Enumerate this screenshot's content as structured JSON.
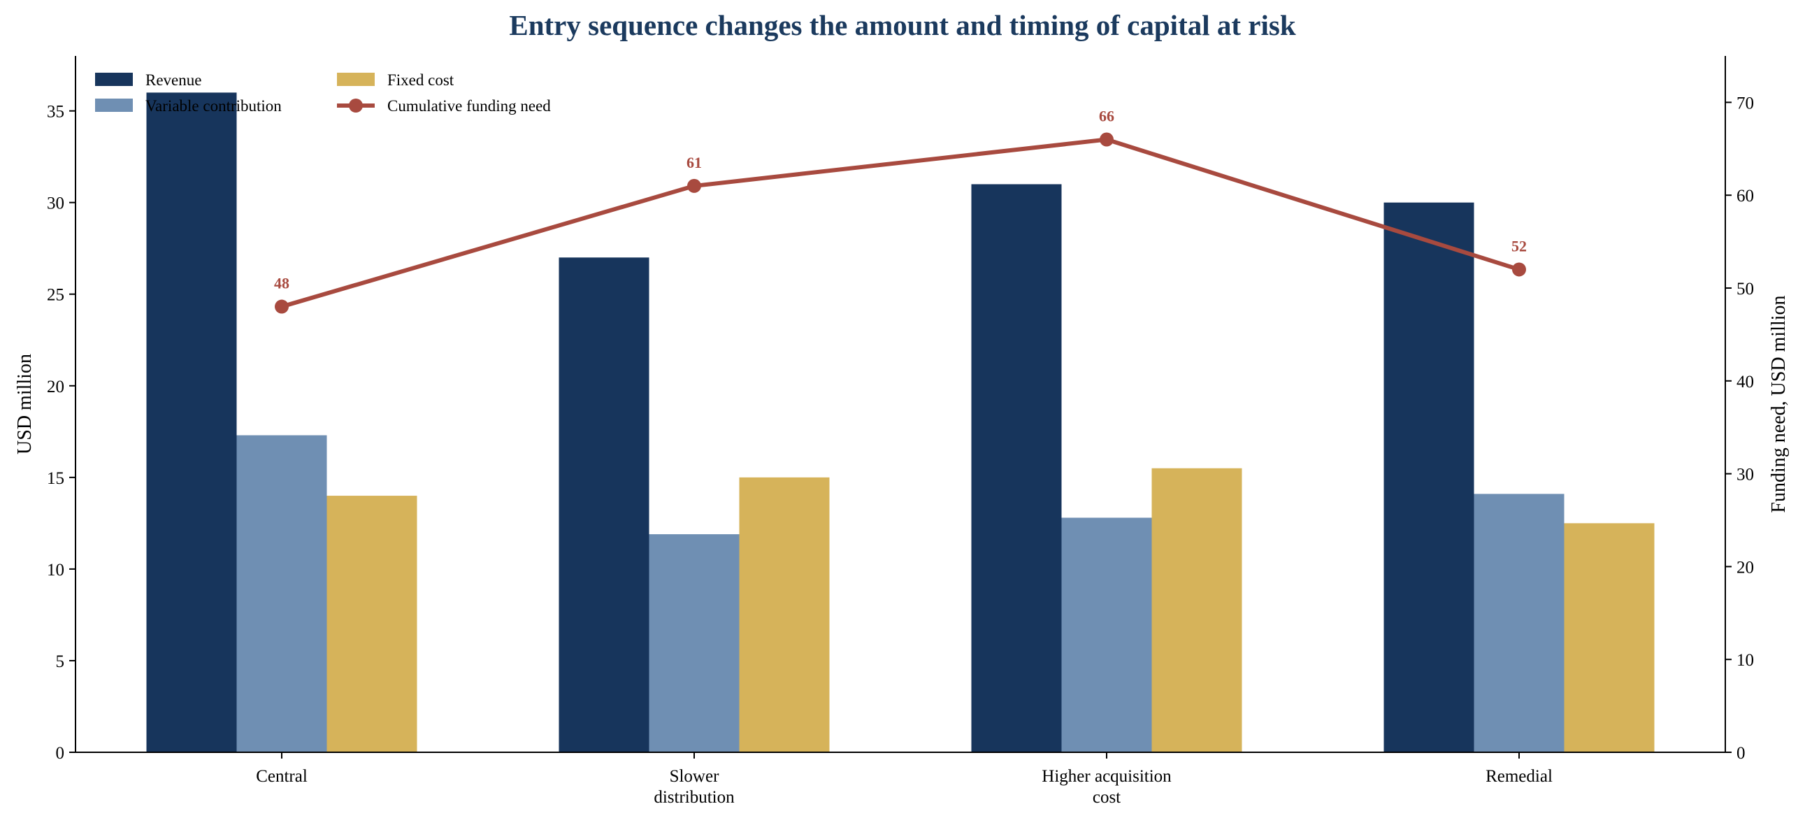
{
  "chart_data": {
    "type": "bar",
    "title": "Entry sequence changes the amount and timing of capital at risk",
    "categories": [
      "Central",
      "Slower distribution",
      "Higher acquisition cost",
      "Remedial"
    ],
    "category_lines": [
      [
        "Central"
      ],
      [
        "Slower",
        "distribution"
      ],
      [
        "Higher acquisition",
        "cost"
      ],
      [
        "Remedial"
      ]
    ],
    "ylabel": "USD million",
    "y2label": "Funding need, USD million",
    "ylim": [
      0,
      38
    ],
    "y2lim": [
      0,
      75
    ],
    "yticks": [
      0,
      5,
      10,
      15,
      20,
      25,
      30,
      35
    ],
    "y2ticks": [
      0,
      10,
      20,
      30,
      40,
      50,
      60,
      70
    ],
    "grid": false,
    "legend_position": "top-left",
    "series": [
      {
        "name": "Revenue",
        "kind": "bar",
        "axis": "left",
        "color": "#17355c",
        "values": [
          36,
          27,
          31,
          30
        ]
      },
      {
        "name": "Variable contribution",
        "kind": "bar",
        "axis": "left",
        "color": "#6f8fb3",
        "values": [
          17.3,
          11.9,
          12.8,
          14.1
        ]
      },
      {
        "name": "Fixed cost",
        "kind": "bar",
        "axis": "left",
        "color": "#d6b35a",
        "values": [
          14,
          15,
          15.5,
          12.5
        ]
      },
      {
        "name": "Cumulative funding need",
        "kind": "line",
        "axis": "right",
        "color": "#a84a3f",
        "values": [
          48,
          61,
          66,
          52
        ],
        "labels": [
          "48",
          "61",
          "66",
          "52"
        ]
      }
    ]
  },
  "colors": {
    "title": "#1b3a5e",
    "axis": "#000000"
  }
}
